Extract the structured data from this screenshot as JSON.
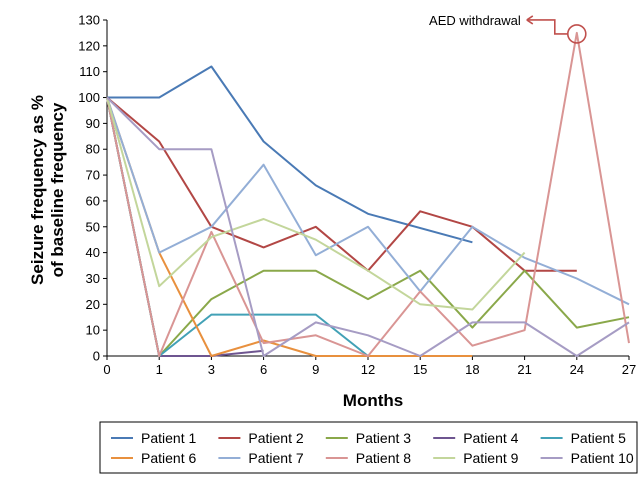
{
  "chart_data": {
    "type": "line",
    "title": "",
    "xlabel": "Months",
    "ylabel_lines": [
      "Seizure frequency as %",
      "of baseline frequency"
    ],
    "xticks": [
      0,
      1,
      3,
      6,
      9,
      12,
      15,
      18,
      21,
      24,
      27
    ],
    "yticks": [
      0,
      10,
      20,
      30,
      40,
      50,
      60,
      70,
      80,
      90,
      100,
      110,
      120,
      130
    ],
    "ylim": [
      0,
      130
    ],
    "grid": false,
    "legend_position": "bottom",
    "series": [
      {
        "name": "Patient 1",
        "color": "#4a7ab5",
        "points": [
          [
            0,
            100
          ],
          [
            1,
            100
          ],
          [
            3,
            112
          ],
          [
            6,
            83
          ],
          [
            9,
            66
          ],
          [
            12,
            55
          ],
          [
            18,
            44
          ]
        ]
      },
      {
        "name": "Patient 2",
        "color": "#b24745",
        "points": [
          [
            0,
            100
          ],
          [
            1,
            83
          ],
          [
            3,
            50
          ],
          [
            6,
            42
          ],
          [
            9,
            50
          ],
          [
            12,
            33
          ],
          [
            15,
            56
          ],
          [
            18,
            50
          ],
          [
            21,
            33
          ],
          [
            24,
            33
          ]
        ]
      },
      {
        "name": "Patient 3",
        "color": "#8aa84a",
        "points": [
          [
            0,
            100
          ],
          [
            1,
            0
          ],
          [
            3,
            22
          ],
          [
            6,
            33
          ],
          [
            9,
            33
          ],
          [
            12,
            22
          ],
          [
            15,
            33
          ],
          [
            18,
            11
          ],
          [
            21,
            33
          ],
          [
            24,
            11
          ],
          [
            27,
            15
          ]
        ]
      },
      {
        "name": "Patient 4",
        "color": "#6e5590",
        "points": [
          [
            0,
            100
          ],
          [
            1,
            0
          ],
          [
            3,
            0
          ],
          [
            6,
            2
          ]
        ]
      },
      {
        "name": "Patient 5",
        "color": "#42a1b6",
        "points": [
          [
            0,
            100
          ],
          [
            1,
            0
          ],
          [
            3,
            16
          ],
          [
            6,
            16
          ],
          [
            9,
            16
          ],
          [
            12,
            0
          ],
          [
            15,
            0
          ],
          [
            18,
            0
          ]
        ]
      },
      {
        "name": "Patient 6",
        "color": "#e8903e",
        "points": [
          [
            0,
            100
          ],
          [
            1,
            40
          ],
          [
            3,
            0
          ],
          [
            6,
            6
          ],
          [
            9,
            0
          ],
          [
            12,
            0
          ],
          [
            15,
            0
          ],
          [
            18,
            0
          ]
        ]
      },
      {
        "name": "Patient 7",
        "color": "#93aed6",
        "points": [
          [
            0,
            100
          ],
          [
            1,
            40
          ],
          [
            3,
            50
          ],
          [
            6,
            74
          ],
          [
            9,
            39
          ],
          [
            12,
            50
          ],
          [
            15,
            25
          ],
          [
            18,
            50
          ],
          [
            21,
            38
          ],
          [
            24,
            30
          ],
          [
            27,
            20
          ]
        ]
      },
      {
        "name": "Patient 8",
        "color": "#d99594",
        "points": [
          [
            0,
            100
          ],
          [
            1,
            0
          ],
          [
            3,
            48
          ],
          [
            6,
            5
          ],
          [
            9,
            8
          ],
          [
            12,
            0
          ],
          [
            15,
            25
          ],
          [
            18,
            4
          ],
          [
            21,
            10
          ],
          [
            24,
            125
          ],
          [
            27,
            5
          ]
        ]
      },
      {
        "name": "Patient 9",
        "color": "#c3d69b",
        "points": [
          [
            0,
            100
          ],
          [
            1,
            27
          ],
          [
            3,
            46
          ],
          [
            6,
            53
          ],
          [
            9,
            45
          ],
          [
            12,
            33
          ],
          [
            15,
            20
          ],
          [
            18,
            18
          ],
          [
            21,
            40
          ]
        ]
      },
      {
        "name": "Patient 10",
        "color": "#a69cc4",
        "points": [
          [
            0,
            100
          ],
          [
            1,
            80
          ],
          [
            3,
            80
          ],
          [
            6,
            0
          ],
          [
            9,
            13
          ],
          [
            12,
            8
          ],
          [
            15,
            0
          ],
          [
            18,
            13
          ],
          [
            21,
            13
          ],
          [
            24,
            0
          ],
          [
            27,
            13
          ]
        ]
      }
    ],
    "annotations": [
      {
        "text": "AED withdrawal",
        "x": 24,
        "y": 125,
        "color": "#c0504d"
      }
    ]
  }
}
